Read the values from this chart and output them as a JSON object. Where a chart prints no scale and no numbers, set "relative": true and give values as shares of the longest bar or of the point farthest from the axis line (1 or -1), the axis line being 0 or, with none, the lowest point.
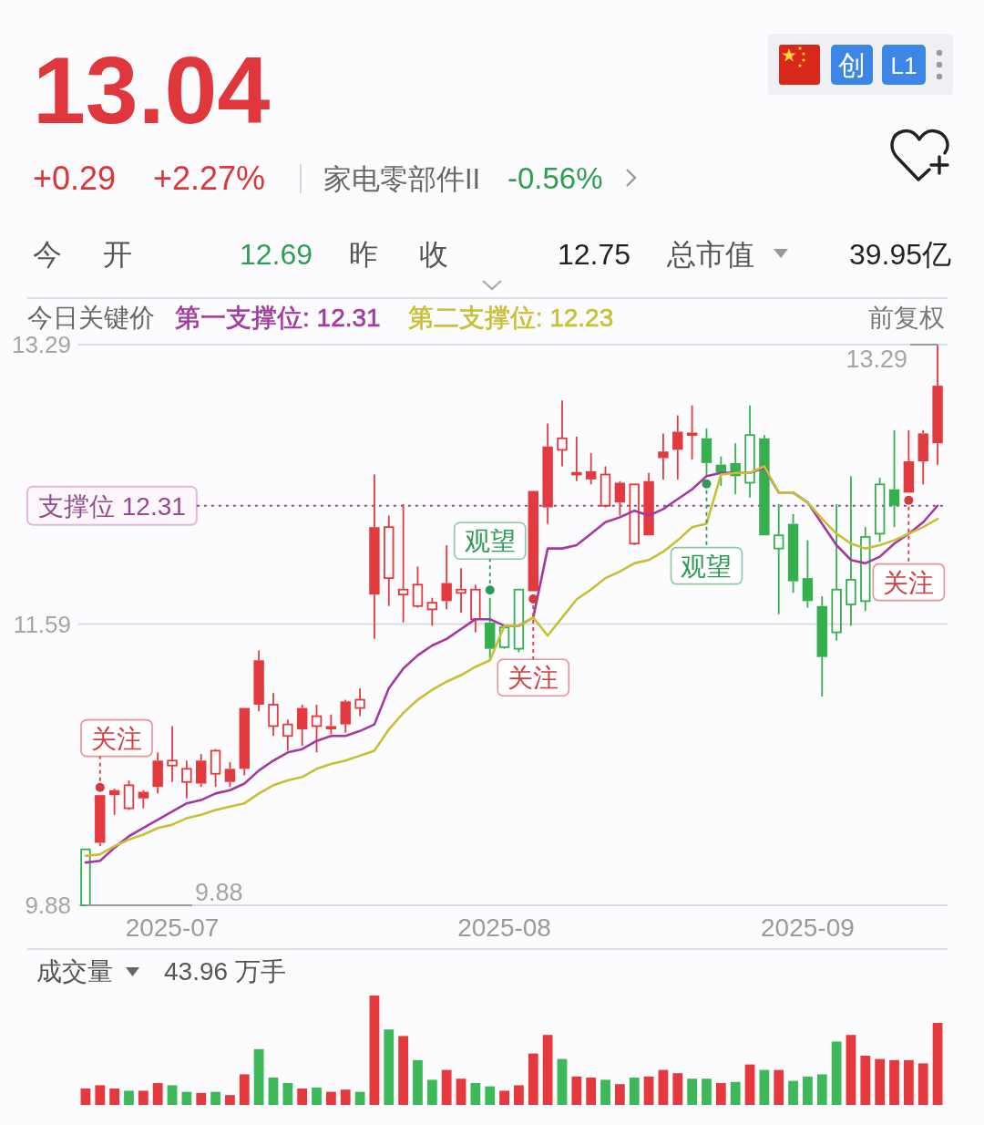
{
  "chart_data": [
    {
      "type": "candlestick",
      "title": "13.04",
      "categories": [
        null,
        null,
        null,
        null,
        null,
        null,
        "2025-07",
        null,
        null,
        null,
        null,
        null,
        null,
        null,
        null,
        null,
        null,
        null,
        null,
        null,
        null,
        null,
        null,
        null,
        null,
        null,
        null,
        null,
        null,
        "2025-08",
        null,
        null,
        null,
        null,
        null,
        null,
        null,
        null,
        null,
        null,
        null,
        null,
        null,
        null,
        null,
        null,
        null,
        null,
        null,
        null,
        "2025-09",
        null,
        null,
        null,
        null,
        null,
        null,
        null,
        null,
        null
      ],
      "ohlc": [
        [
          9.88,
          10.22,
          9.88,
          10.22
        ],
        [
          10.26,
          10.55,
          10.24,
          10.55
        ],
        [
          10.55,
          10.59,
          10.43,
          10.58
        ],
        [
          10.61,
          10.64,
          10.46,
          10.47
        ],
        [
          10.53,
          10.58,
          10.47,
          10.57
        ],
        [
          10.6,
          10.81,
          10.56,
          10.76
        ],
        [
          10.76,
          10.97,
          10.63,
          10.73
        ],
        [
          10.71,
          10.76,
          10.53,
          10.63
        ],
        [
          10.62,
          10.8,
          10.6,
          10.76
        ],
        [
          10.82,
          10.83,
          10.6,
          10.68
        ],
        [
          10.63,
          10.75,
          10.6,
          10.71
        ],
        [
          10.71,
          11.08,
          10.67,
          11.08
        ],
        [
          11.1,
          11.43,
          11.06,
          11.37
        ],
        [
          11.1,
          11.17,
          10.91,
          10.97
        ],
        [
          10.98,
          11.01,
          10.82,
          10.91
        ],
        [
          10.95,
          11.1,
          10.85,
          11.08
        ],
        [
          11.03,
          11.1,
          10.81,
          10.97
        ],
        [
          10.95,
          11.04,
          10.92,
          10.97
        ],
        [
          10.98,
          11.13,
          10.93,
          11.12
        ],
        [
          11.13,
          11.2,
          11.03,
          11.08
        ],
        [
          11.77,
          12.5,
          11.5,
          12.18
        ],
        [
          12.18,
          12.25,
          11.7,
          11.87
        ],
        [
          11.8,
          12.32,
          11.6,
          11.77
        ],
        [
          11.83,
          11.94,
          11.69,
          11.7
        ],
        [
          11.72,
          11.75,
          11.58,
          11.68
        ],
        [
          11.73,
          12.07,
          11.68,
          11.84
        ],
        [
          11.8,
          11.93,
          11.66,
          11.78
        ],
        [
          11.8,
          11.83,
          11.54,
          11.62
        ],
        [
          11.6,
          11.75,
          11.37,
          11.44
        ],
        [
          11.45,
          11.57,
          11.44,
          11.57
        ],
        [
          11.44,
          11.8,
          11.42,
          11.8
        ],
        [
          11.79,
          12.4,
          11.79,
          12.4
        ],
        [
          12.3,
          12.81,
          12.2,
          12.67
        ],
        [
          12.72,
          12.95,
          12.55,
          12.65
        ],
        [
          12.51,
          12.73,
          12.46,
          12.5
        ],
        [
          12.47,
          12.63,
          12.44,
          12.52
        ],
        [
          12.5,
          12.55,
          12.3,
          12.31
        ],
        [
          12.33,
          12.46,
          12.25,
          12.45
        ],
        [
          12.44,
          12.44,
          12.07,
          12.08
        ],
        [
          12.13,
          12.51,
          12.13,
          12.46
        ],
        [
          12.6,
          12.75,
          12.47,
          12.64
        ],
        [
          12.65,
          12.86,
          12.47,
          12.76
        ],
        [
          12.75,
          12.92,
          12.59,
          12.74
        ],
        [
          12.72,
          12.78,
          12.49,
          12.57
        ],
        [
          12.56,
          12.61,
          12.43,
          12.51
        ],
        [
          12.57,
          12.69,
          12.38,
          12.49
        ],
        [
          12.45,
          12.92,
          12.36,
          12.74
        ],
        [
          12.72,
          12.74,
          12.13,
          12.13
        ],
        [
          12.05,
          12.32,
          11.65,
          12.13
        ],
        [
          12.2,
          12.26,
          11.78,
          11.85
        ],
        [
          11.87,
          12.1,
          11.69,
          11.73
        ],
        [
          11.7,
          11.76,
          11.15,
          11.39
        ],
        [
          11.54,
          12.32,
          11.49,
          11.8
        ],
        [
          11.71,
          12.49,
          11.58,
          11.86
        ],
        [
          11.73,
          12.18,
          11.67,
          12.12
        ],
        [
          12.14,
          12.48,
          12.09,
          12.44
        ],
        [
          12.41,
          12.77,
          12.18,
          12.31
        ],
        [
          12.39,
          12.77,
          12.39,
          12.58
        ],
        [
          12.58,
          12.77,
          12.44,
          12.75
        ],
        [
          12.69,
          13.29,
          12.56,
          13.04
        ]
      ],
      "colors": [
        "#34b04f",
        "#e23a3f",
        "#e23a3f",
        "#e23a3f",
        "#e23a3f",
        "#e23a3f",
        "#e23a3f",
        "#e23a3f",
        "#e23a3f",
        "#e23a3f",
        "#e23a3f",
        "#e23a3f",
        "#e23a3f",
        "#e23a3f",
        "#e23a3f",
        "#e23a3f",
        "#e23a3f",
        "#e23a3f",
        "#e23a3f",
        "#e23a3f",
        "#e23a3f",
        "#e23a3f",
        "#e23a3f",
        "#e23a3f",
        "#e23a3f",
        "#e23a3f",
        "#e23a3f",
        "#e23a3f",
        "#34b04f",
        "#34b04f",
        "#34b04f",
        "#e23a3f",
        "#e23a3f",
        "#e23a3f",
        "#e23a3f",
        "#e23a3f",
        "#e23a3f",
        "#e23a3f",
        "#e23a3f",
        "#e23a3f",
        "#e23a3f",
        "#e23a3f",
        "#e23a3f",
        "#34b04f",
        "#34b04f",
        "#34b04f",
        "#34b04f",
        "#34b04f",
        "#34b04f",
        "#34b04f",
        "#34b04f",
        "#34b04f",
        "#34b04f",
        "#34b04f",
        "#34b04f",
        "#34b04f",
        "#34b04f",
        "#e23a3f",
        "#e23a3f",
        "#e23a3f"
      ],
      "series": [
        {
          "name": "第一支撑位: 12.31",
          "type": "line",
          "color": "#a2399e",
          "values": [
            10.14,
            10.15,
            10.23,
            10.3,
            10.35,
            10.4,
            10.45,
            10.5,
            10.52,
            10.56,
            10.58,
            10.62,
            10.7,
            10.76,
            10.81,
            10.83,
            10.88,
            10.91,
            10.91,
            10.94,
            10.98,
            11.2,
            11.32,
            11.4,
            11.46,
            11.5,
            11.56,
            11.62,
            11.62,
            11.58,
            11.58,
            11.63,
            12.05,
            12.05,
            12.07,
            12.14,
            12.21,
            12.24,
            12.28,
            12.25,
            12.29,
            12.35,
            12.41,
            12.49,
            12.51,
            12.51,
            12.51,
            12.54,
            12.39,
            12.39,
            12.33,
            12.2,
            12.07,
            11.98,
            11.96,
            12.0,
            12.08,
            12.14,
            12.21,
            12.31
          ]
        },
        {
          "name": "第二支撑位: 12.23",
          "type": "line",
          "color": "#c8bf35",
          "values": [
            10.18,
            10.19,
            10.24,
            10.28,
            10.31,
            10.35,
            10.37,
            10.41,
            10.43,
            10.46,
            10.48,
            10.5,
            10.56,
            10.61,
            10.64,
            10.66,
            10.71,
            10.74,
            10.76,
            10.79,
            10.82,
            10.95,
            11.05,
            11.13,
            11.19,
            11.24,
            11.28,
            11.33,
            11.37,
            11.58,
            11.58,
            11.63,
            11.52,
            11.63,
            11.74,
            11.8,
            11.87,
            11.91,
            11.96,
            11.98,
            12.03,
            12.1,
            12.18,
            12.2,
            12.5,
            12.51,
            12.51,
            12.55,
            12.39,
            12.39,
            12.33,
            12.23,
            12.14,
            12.08,
            12.05,
            12.07,
            12.1,
            12.14,
            12.18,
            12.23
          ]
        }
      ],
      "ylim": [
        9.88,
        13.29
      ],
      "yticks": [
        13.29,
        11.59,
        9.88
      ],
      "grid": "y",
      "legend": "top left",
      "legend_title": "今日关键价",
      "ref_lines": [
        {
          "axis": "y",
          "value": 12.31,
          "label": "支撑位 12.31",
          "color": "#944a8c",
          "line_style": "dotted"
        }
      ],
      "annotations": [
        "+0.29",
        "+2.27%",
        "家电零部件II",
        "-0.56%",
        "今 开",
        "12.69",
        "昨 收",
        "12.75",
        "总市值",
        "39.95亿",
        "创",
        "L1",
        "前复权",
        {
          "text": "关注",
          "y": 10.55
        },
        {
          "text": "观望",
          "y": 11.75
        },
        {
          "text": "关注",
          "y": 11.79
        },
        {
          "text": "观望",
          "y": 12.49
        },
        {
          "text": "关注",
          "y": 12.39
        },
        "13.29",
        "9.88"
      ]
    },
    {
      "type": "bar",
      "title": "成交量",
      "relative": true,
      "categories": [
        null,
        null,
        null,
        null,
        null,
        null,
        null,
        null,
        null,
        null,
        null,
        null,
        null,
        null,
        null,
        null,
        null,
        null,
        null,
        null,
        null,
        null,
        null,
        null,
        null,
        null,
        null,
        null,
        null,
        null,
        null,
        null,
        null,
        null,
        null,
        null,
        null,
        null,
        null,
        null,
        null,
        null,
        null,
        null,
        null,
        null,
        null,
        null,
        null,
        null,
        null,
        null,
        null,
        null,
        null,
        null,
        null,
        null,
        null,
        null
      ],
      "values": [
        0.15,
        0.18,
        0.15,
        0.13,
        0.13,
        0.2,
        0.18,
        0.12,
        0.11,
        0.12,
        0.09,
        0.28,
        0.51,
        0.25,
        0.2,
        0.15,
        0.16,
        0.12,
        0.14,
        0.12,
        1,
        0.69,
        0.63,
        0.41,
        0.23,
        0.32,
        0.24,
        0.2,
        0.17,
        0.13,
        0.18,
        0.47,
        0.64,
        0.42,
        0.26,
        0.25,
        0.23,
        0.19,
        0.25,
        0.26,
        0.32,
        0.29,
        0.24,
        0.24,
        0.2,
        0.21,
        0.37,
        0.32,
        0.32,
        0.22,
        0.26,
        0.28,
        0.58,
        0.64,
        0.45,
        0.42,
        0.41,
        0.41,
        0.38,
        0.75
      ],
      "colors": [
        "#e5393e",
        "#e5393e",
        "#e5393e",
        "#3db95a",
        "#e5393e",
        "#e5393e",
        "#3db95a",
        "#3db95a",
        "#e5393e",
        "#3db95a",
        "#e5393e",
        "#e5393e",
        "#3db95a",
        "#3db95a",
        "#3db95a",
        "#e5393e",
        "#3db95a",
        "#e5393e",
        "#e5393e",
        "#3db95a",
        "#e5393e",
        "#3db95a",
        "#e5393e",
        "#3db95a",
        "#3db95a",
        "#e5393e",
        "#e5393e",
        "#3db95a",
        "#3db95a",
        "#e5393e",
        "#e5393e",
        "#e5393e",
        "#e5393e",
        "#3db95a",
        "#e5393e",
        "#e5393e",
        "#3db95a",
        "#e5393e",
        "#3db95a",
        "#e5393e",
        "#e5393e",
        "#e5393e",
        "#3db95a",
        "#3db95a",
        "#e5393e",
        "#3db95a",
        "#e5393e",
        "#3db95a",
        "#e5393e",
        "#3db95a",
        "#3db95a",
        "#3db95a",
        "#3db95a",
        "#e5393e",
        "#e5393e",
        "#e5393e",
        "#e5393e",
        "#e5393e",
        "#e5393e",
        "#e5393e"
      ],
      "annotations": [
        "43.96 万手"
      ]
    }
  ]
}
